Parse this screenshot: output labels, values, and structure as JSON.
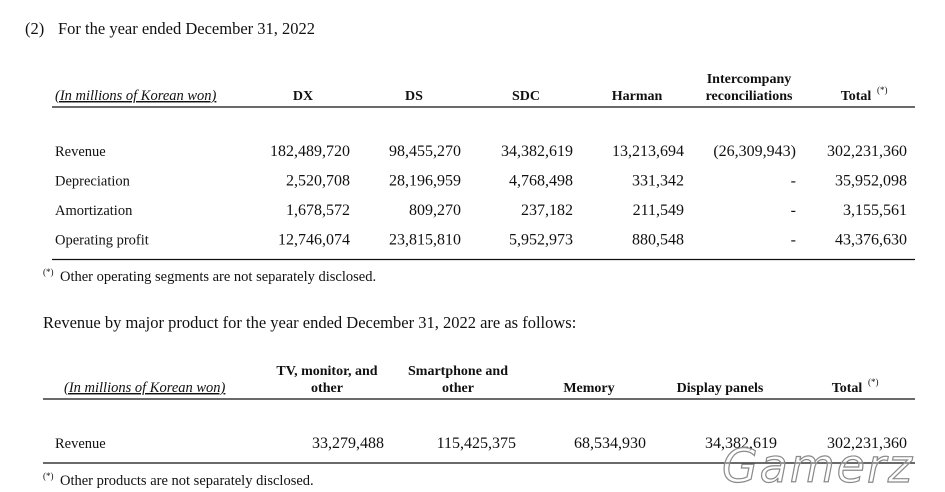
{
  "heading": {
    "number": "(2)",
    "text": "For the year ended December 31, 2022"
  },
  "segment_table": {
    "unit_label": "(In millions of Korean won)",
    "columns": [
      {
        "lines": [
          "DX"
        ]
      },
      {
        "lines": [
          "DS"
        ]
      },
      {
        "lines": [
          "SDC"
        ]
      },
      {
        "lines": [
          "Harman"
        ]
      },
      {
        "lines": [
          "Intercompany",
          "reconciliations"
        ]
      },
      {
        "lines": [
          "Total"
        ],
        "marker": "(*)"
      }
    ],
    "rows": [
      {
        "label": "Revenue",
        "cells": [
          "182,489,720",
          "98,455,270",
          "34,382,619",
          "13,213,694",
          "(26,309,943)",
          "302,231,360"
        ]
      },
      {
        "label": "Depreciation",
        "cells": [
          "2,520,708",
          "28,196,959",
          "4,768,498",
          "331,342",
          "-",
          "35,952,098"
        ]
      },
      {
        "label": "Amortization",
        "cells": [
          "1,678,572",
          "809,270",
          "237,182",
          "211,549",
          "-",
          "3,155,561"
        ]
      },
      {
        "label": "Operating profit",
        "cells": [
          "12,746,074",
          "23,815,810",
          "5,952,973",
          "880,548",
          "-",
          "43,376,630"
        ]
      }
    ],
    "footnote": {
      "marker": "(*)",
      "text": "Other operating segments are not separately disclosed."
    }
  },
  "product_intro": "Revenue by major product for the year ended December 31, 2022 are as follows:",
  "product_table": {
    "unit_label": "(In millions of Korean won)",
    "columns": [
      {
        "lines": [
          "TV, monitor, and",
          "other"
        ]
      },
      {
        "lines": [
          "Smartphone and",
          "other"
        ]
      },
      {
        "lines": [
          "Memory"
        ]
      },
      {
        "lines": [
          "Display panels"
        ]
      },
      {
        "lines": [
          "Total"
        ],
        "marker": "(*)"
      }
    ],
    "rows": [
      {
        "label": "Revenue",
        "cells": [
          "33,279,488",
          "115,425,375",
          "68,534,930",
          "34,382,619",
          "302,231,360"
        ]
      }
    ],
    "footnote": {
      "marker": "(*)",
      "text": "Other products are not separately disclosed."
    }
  },
  "watermark": "Gamerz"
}
